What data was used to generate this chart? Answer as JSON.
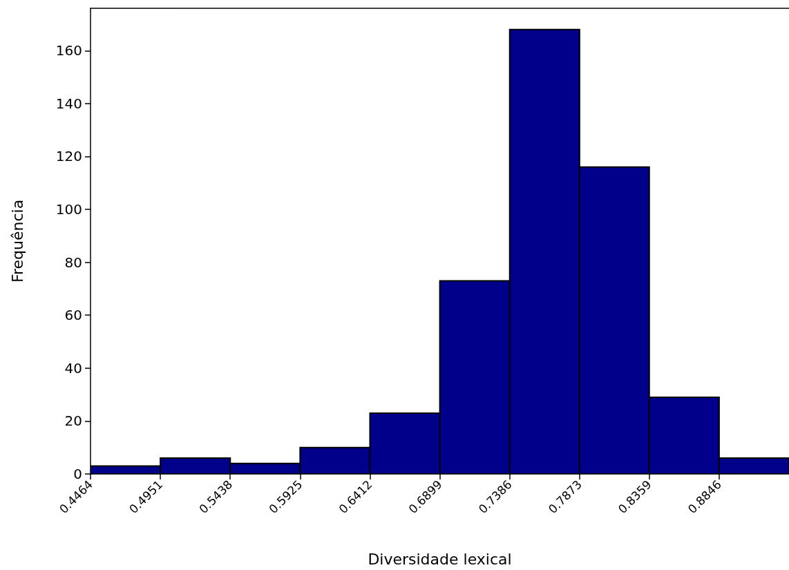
{
  "chart_data": {
    "type": "histogram",
    "xlabel": "Diversidade lexical",
    "ylabel": "Frequência",
    "bins": [
      0.4464,
      0.4951,
      0.5438,
      0.5925,
      0.6412,
      0.6899,
      0.7386,
      0.7873,
      0.8359,
      0.8846,
      0.9333
    ],
    "values": [
      3,
      6,
      4,
      10,
      23,
      73,
      168,
      116,
      29,
      6
    ],
    "color": "#00008b",
    "xlim": [
      0.4464,
      0.9333
    ],
    "xticks": [
      0.4464,
      0.4951,
      0.5438,
      0.5925,
      0.6412,
      0.6899,
      0.7386,
      0.7873,
      0.8359,
      0.8846
    ],
    "ylim": [
      0,
      176
    ],
    "yticks": [
      0,
      20,
      40,
      60,
      80,
      100,
      120,
      140,
      160
    ],
    "grid": false
  }
}
